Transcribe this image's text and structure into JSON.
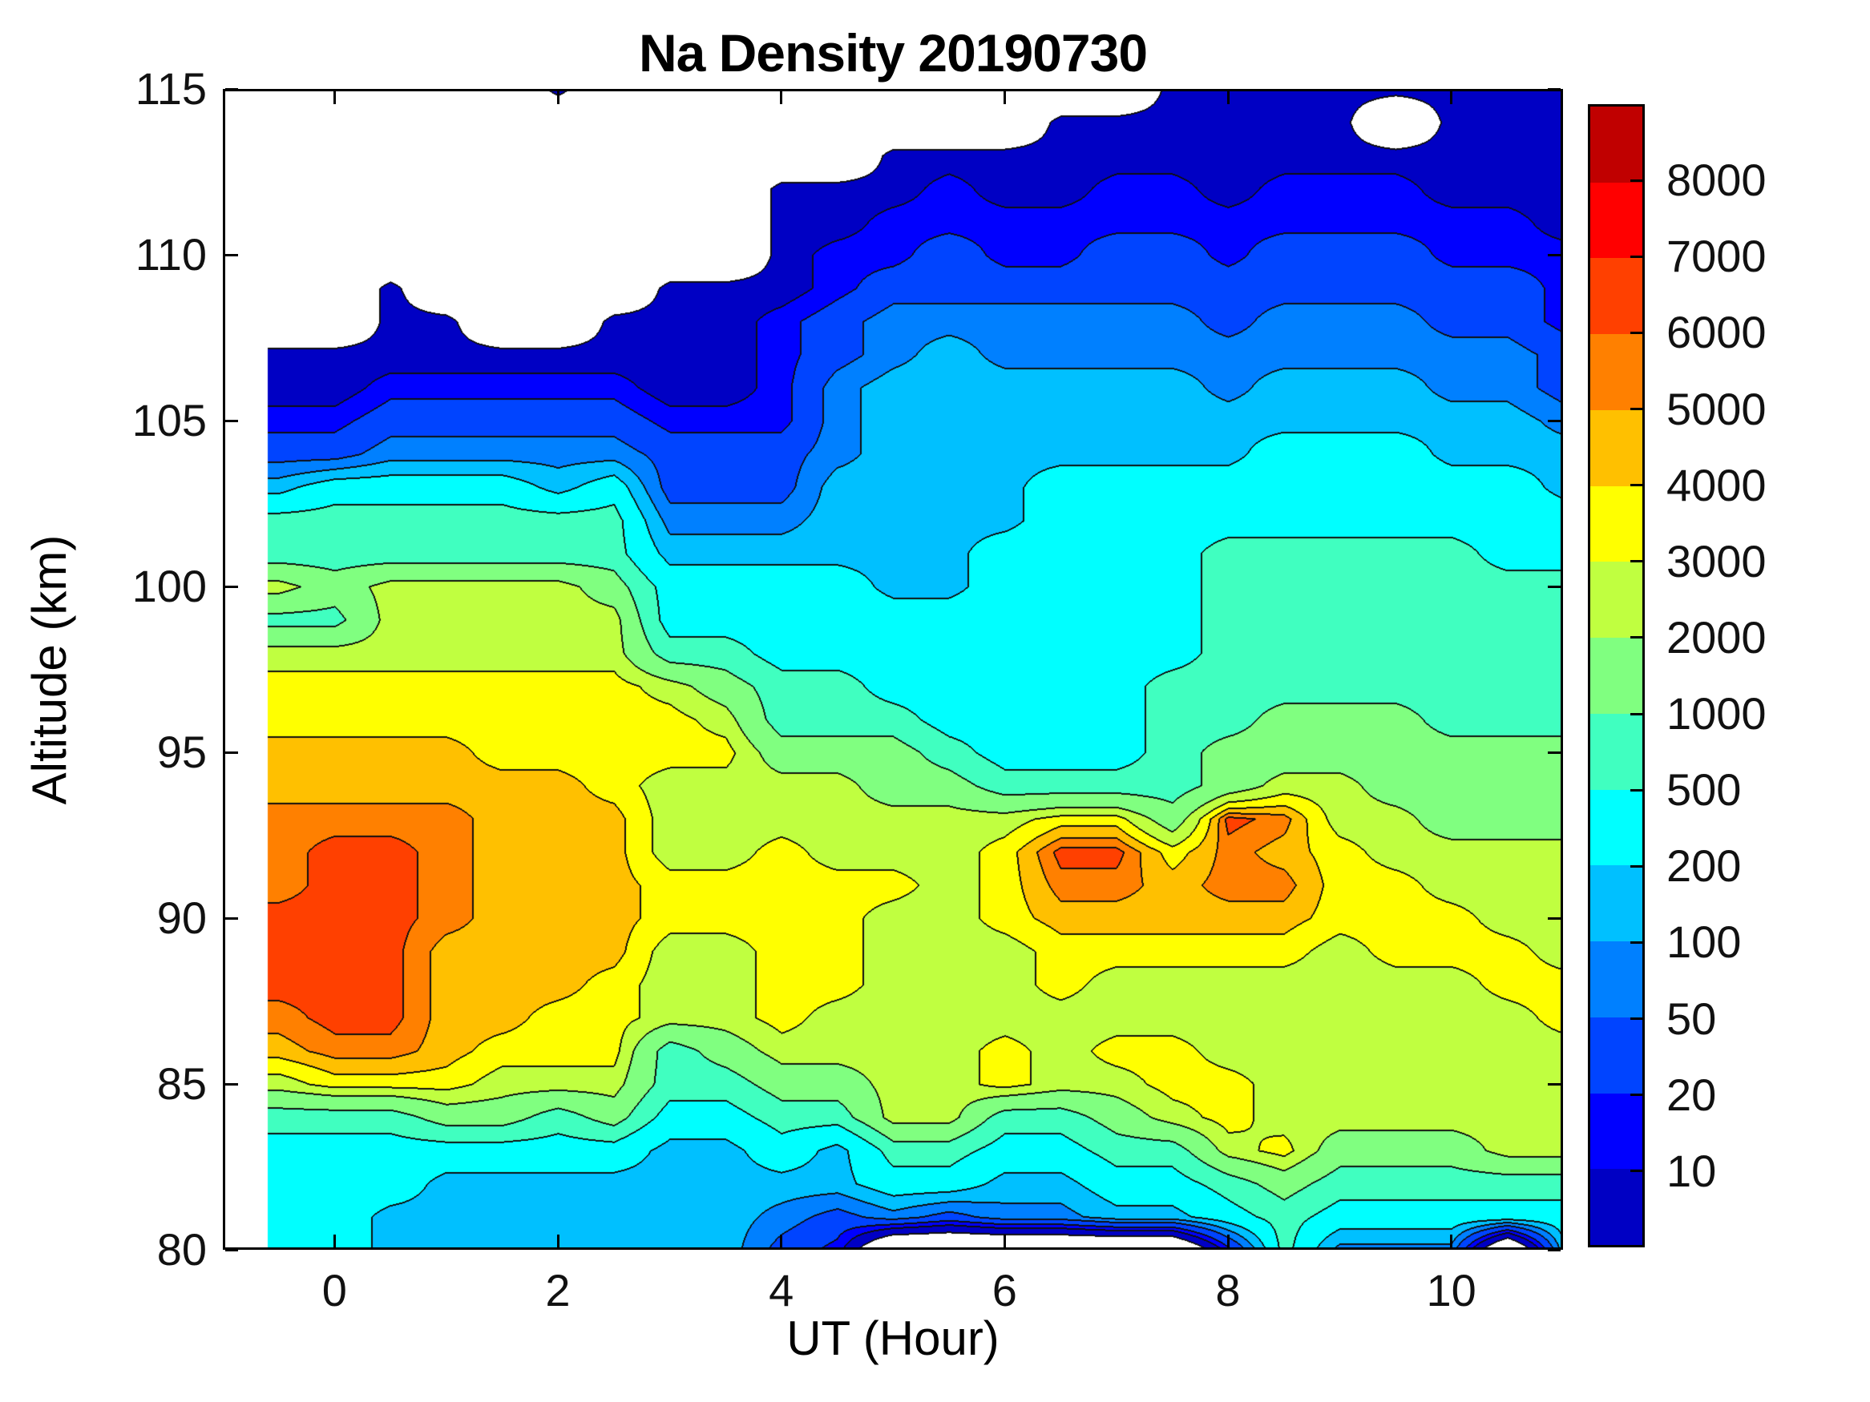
{
  "figure": {
    "title": "Na Density 20190730",
    "xlabel": "UT (Hour)",
    "ylabel": "Altitude (km)"
  },
  "chart_data": {
    "type": "heatmap",
    "title": "Na Density 20190730",
    "xlabel": "UT (Hour)",
    "ylabel": "Altitude (km)",
    "xlim": [
      -1,
      11
    ],
    "ylim": [
      80,
      115
    ],
    "x_ticks": [
      0,
      2,
      4,
      6,
      8,
      10
    ],
    "y_ticks": [
      115,
      110,
      105,
      100,
      95,
      90,
      85,
      80
    ],
    "data_start_ut": -0.6,
    "grid": false,
    "legend_position": "colorbar-right",
    "contour_levels": [
      10,
      20,
      50,
      100,
      200,
      500,
      1000,
      2000,
      3000,
      4000,
      5000,
      6000,
      7000,
      8000
    ],
    "band_colors": [
      "#0000c4",
      "#0000ff",
      "#0044ff",
      "#0080ff",
      "#00c0ff",
      "#00ffff",
      "#40ffc0",
      "#80ff80",
      "#c0ff40",
      "#ffff00",
      "#ffc000",
      "#ff8000",
      "#ff4000",
      "#ff0000",
      "#c00000"
    ],
    "no_data_color": "#ffffff",
    "col_uts": [
      -0.5,
      0,
      0.5,
      1,
      1.5,
      2,
      2.5,
      3,
      3.5,
      4,
      4.5,
      5,
      5.5,
      6,
      6.5,
      7,
      7.5,
      8,
      8.5,
      9,
      9.5,
      10,
      10.5,
      11
    ],
    "row_alts": [
      115,
      114,
      113,
      112,
      111,
      110,
      109,
      108,
      107,
      106,
      105,
      104,
      103,
      102,
      101,
      100,
      99,
      98,
      97,
      96,
      95,
      94,
      93,
      92,
      91,
      90,
      89,
      88,
      87,
      86,
      85,
      84,
      83,
      82,
      81,
      80
    ],
    "values": [
      [
        0,
        0,
        0,
        0,
        0,
        6,
        0,
        0,
        0,
        0,
        0,
        0,
        0,
        0,
        0,
        0,
        6,
        6,
        6,
        6,
        6,
        6,
        6,
        6
      ],
      [
        0,
        0,
        0,
        0,
        0,
        0,
        0,
        0,
        0,
        0,
        0,
        0,
        0,
        0,
        6,
        6,
        6,
        6,
        6,
        6,
        0,
        6,
        6,
        6
      ],
      [
        0,
        0,
        0,
        0,
        0,
        0,
        0,
        0,
        0,
        0,
        0,
        6,
        6,
        6,
        6,
        6,
        6,
        6,
        6,
        6,
        6,
        6,
        6,
        6
      ],
      [
        0,
        0,
        0,
        0,
        0,
        0,
        0,
        0,
        0,
        6,
        6,
        6,
        15,
        6,
        6,
        15,
        15,
        6,
        15,
        15,
        15,
        6,
        6,
        6
      ],
      [
        0,
        0,
        0,
        0,
        0,
        0,
        0,
        0,
        0,
        6,
        6,
        15,
        15,
        15,
        15,
        15,
        15,
        15,
        15,
        15,
        15,
        15,
        15,
        6
      ],
      [
        0,
        0,
        0,
        0,
        0,
        0,
        0,
        0,
        0,
        6,
        15,
        15,
        35,
        15,
        15,
        35,
        35,
        15,
        35,
        35,
        35,
        15,
        15,
        15
      ],
      [
        0,
        0,
        6,
        0,
        0,
        0,
        0,
        6,
        6,
        6,
        15,
        35,
        35,
        35,
        35,
        35,
        35,
        35,
        35,
        35,
        35,
        35,
        35,
        15
      ],
      [
        0,
        0,
        6,
        6,
        0,
        0,
        6,
        6,
        6,
        15,
        35,
        75,
        75,
        75,
        75,
        75,
        75,
        35,
        75,
        75,
        75,
        35,
        35,
        15
      ],
      [
        6,
        6,
        6,
        6,
        6,
        6,
        6,
        6,
        6,
        15,
        35,
        75,
        150,
        75,
        75,
        75,
        75,
        75,
        75,
        75,
        75,
        75,
        75,
        35
      ],
      [
        6,
        6,
        15,
        15,
        15,
        15,
        15,
        6,
        6,
        15,
        75,
        150,
        150,
        150,
        150,
        150,
        150,
        75,
        150,
        150,
        150,
        75,
        75,
        35
      ],
      [
        15,
        15,
        35,
        35,
        35,
        35,
        35,
        15,
        15,
        15,
        75,
        150,
        150,
        150,
        150,
        150,
        150,
        150,
        150,
        150,
        150,
        150,
        150,
        75
      ],
      [
        35,
        35,
        75,
        75,
        75,
        75,
        75,
        35,
        35,
        35,
        75,
        150,
        150,
        150,
        150,
        150,
        150,
        150,
        350,
        350,
        350,
        150,
        150,
        150
      ],
      [
        150,
        350,
        350,
        350,
        350,
        150,
        350,
        35,
        35,
        35,
        150,
        150,
        150,
        150,
        350,
        350,
        350,
        350,
        350,
        350,
        350,
        350,
        350,
        150
      ],
      [
        700,
        700,
        700,
        700,
        700,
        700,
        700,
        75,
        75,
        75,
        150,
        150,
        150,
        150,
        350,
        350,
        350,
        350,
        350,
        350,
        350,
        350,
        350,
        350
      ],
      [
        700,
        700,
        700,
        700,
        700,
        700,
        700,
        150,
        150,
        150,
        150,
        150,
        150,
        350,
        350,
        350,
        350,
        700,
        700,
        700,
        700,
        700,
        350,
        350
      ],
      [
        2500,
        1400,
        2500,
        2500,
        2500,
        2500,
        1400,
        350,
        350,
        350,
        350,
        150,
        150,
        350,
        350,
        350,
        350,
        700,
        700,
        700,
        700,
        700,
        700,
        700
      ],
      [
        800,
        800,
        2500,
        2500,
        2500,
        2500,
        2500,
        350,
        350,
        350,
        350,
        350,
        350,
        350,
        350,
        350,
        350,
        700,
        700,
        700,
        700,
        700,
        700,
        700
      ],
      [
        2500,
        2500,
        2500,
        2500,
        2500,
        2500,
        2500,
        700,
        700,
        350,
        350,
        350,
        350,
        350,
        350,
        350,
        350,
        700,
        700,
        700,
        700,
        700,
        700,
        700
      ],
      [
        3500,
        3500,
        3500,
        3500,
        3500,
        3500,
        3500,
        2500,
        1400,
        700,
        700,
        350,
        350,
        350,
        350,
        350,
        700,
        700,
        700,
        700,
        700,
        700,
        700,
        700
      ],
      [
        3500,
        3500,
        3500,
        3500,
        3500,
        3500,
        3500,
        3500,
        2500,
        700,
        700,
        700,
        350,
        350,
        350,
        350,
        700,
        700,
        1400,
        1400,
        1400,
        700,
        700,
        700
      ],
      [
        4500,
        4500,
        4500,
        4500,
        3500,
        3500,
        3500,
        3500,
        3500,
        1400,
        1400,
        1400,
        700,
        350,
        350,
        350,
        700,
        1400,
        1400,
        1400,
        1400,
        1400,
        1400,
        1400
      ],
      [
        4500,
        4500,
        4500,
        4500,
        4500,
        4500,
        3500,
        2500,
        2500,
        2500,
        2500,
        1400,
        1400,
        700,
        700,
        700,
        700,
        1400,
        2500,
        2500,
        1400,
        1400,
        1400,
        1400
      ],
      [
        5500,
        5500,
        5500,
        5500,
        4500,
        4500,
        4500,
        2500,
        2500,
        2500,
        2500,
        2500,
        2500,
        2500,
        3500,
        3500,
        1400,
        6500,
        5500,
        2500,
        2500,
        1400,
        1400,
        1400
      ],
      [
        5500,
        6500,
        6500,
        5500,
        4500,
        4500,
        4500,
        2500,
        2500,
        3500,
        2500,
        2500,
        2500,
        3500,
        6500,
        6500,
        3500,
        5500,
        4500,
        3500,
        2500,
        2500,
        2500,
        2500
      ],
      [
        5500,
        6500,
        6500,
        5500,
        4500,
        4500,
        4500,
        3500,
        3500,
        3500,
        3500,
        3500,
        2500,
        3500,
        5500,
        5500,
        4500,
        5500,
        5500,
        3500,
        3500,
        2500,
        2500,
        2500
      ],
      [
        6500,
        6500,
        6500,
        5500,
        4500,
        4500,
        4500,
        3500,
        3500,
        3500,
        3500,
        2500,
        2500,
        3500,
        4500,
        4500,
        4500,
        4500,
        4500,
        3500,
        3500,
        3500,
        2500,
        2500
      ],
      [
        6500,
        6500,
        6500,
        4500,
        4500,
        4500,
        4500,
        2500,
        2500,
        3500,
        3500,
        2500,
        2500,
        2500,
        3500,
        3500,
        3500,
        3500,
        3500,
        2500,
        3500,
        3500,
        3500,
        2500
      ],
      [
        6500,
        6500,
        6500,
        4500,
        4500,
        4500,
        3500,
        2500,
        2500,
        3500,
        3500,
        2500,
        2500,
        2500,
        3500,
        2500,
        2500,
        2500,
        2500,
        2500,
        2500,
        2500,
        3500,
        3500
      ],
      [
        5500,
        6500,
        6500,
        4500,
        4500,
        3500,
        3500,
        2500,
        2500,
        3500,
        2500,
        2500,
        2500,
        2500,
        2500,
        2500,
        2500,
        2500,
        2500,
        2500,
        2500,
        2500,
        2500,
        3500
      ],
      [
        4500,
        5500,
        5500,
        4500,
        3500,
        3500,
        3500,
        700,
        1400,
        2500,
        2500,
        2500,
        2500,
        3500,
        2500,
        3500,
        3500,
        2500,
        2500,
        2500,
        2500,
        2500,
        2500,
        2500
      ],
      [
        2500,
        3500,
        3500,
        3500,
        2500,
        2500,
        2500,
        700,
        700,
        1400,
        1400,
        2500,
        2500,
        3500,
        2500,
        2500,
        3500,
        3500,
        2500,
        2500,
        2500,
        2500,
        2500,
        2500
      ],
      [
        700,
        700,
        700,
        1400,
        1400,
        700,
        1400,
        350,
        350,
        700,
        700,
        2500,
        2500,
        700,
        700,
        1400,
        2500,
        3500,
        2500,
        2500,
        2500,
        2500,
        2500,
        2500
      ],
      [
        350,
        350,
        350,
        350,
        350,
        350,
        350,
        150,
        150,
        350,
        150,
        700,
        700,
        350,
        350,
        700,
        700,
        2500,
        3500,
        1400,
        1400,
        1400,
        2500,
        2500
      ],
      [
        350,
        350,
        350,
        150,
        150,
        150,
        150,
        150,
        150,
        150,
        150,
        350,
        350,
        150,
        150,
        350,
        350,
        700,
        1400,
        700,
        700,
        700,
        700,
        700
      ],
      [
        350,
        350,
        150,
        150,
        150,
        150,
        150,
        150,
        150,
        75,
        35,
        75,
        35,
        75,
        75,
        150,
        150,
        350,
        700,
        350,
        350,
        350,
        350,
        350
      ],
      [
        350,
        350,
        150,
        150,
        150,
        150,
        150,
        150,
        150,
        35,
        15,
        0,
        0,
        0,
        0,
        0,
        0,
        15,
        700,
        75,
        75,
        75,
        0,
        150
      ]
    ]
  },
  "colorbar": {
    "tick_labels_bottom_to_top": [
      "10",
      "20",
      "50",
      "100",
      "200",
      "500",
      "1000",
      "2000",
      "3000",
      "4000",
      "5000",
      "6000",
      "7000",
      "8000"
    ]
  }
}
